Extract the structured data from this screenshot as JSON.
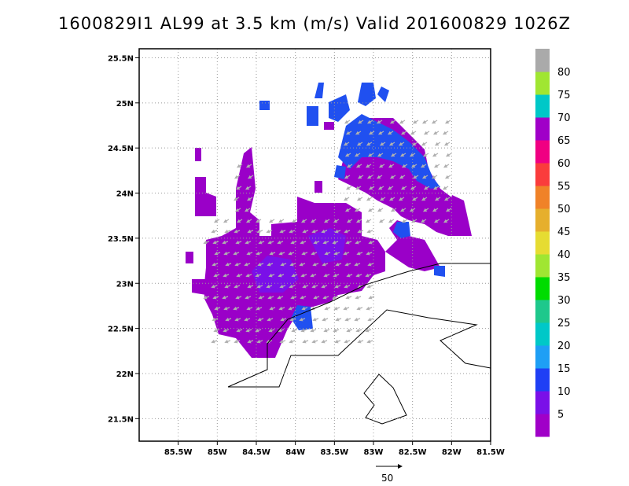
{
  "title": "1600829I1 AL99 at 3.5 km (m/s) Valid 201600829 1026Z",
  "map": {
    "lon_range": [
      -86.0,
      -81.5
    ],
    "lat_range": [
      21.25,
      25.6
    ],
    "lon_ticks": [
      {
        "value": -85.5,
        "label": "85.5W"
      },
      {
        "value": -85.0,
        "label": "85W"
      },
      {
        "value": -84.5,
        "label": "84.5W"
      },
      {
        "value": -84.0,
        "label": "84W"
      },
      {
        "value": -83.5,
        "label": "83.5W"
      },
      {
        "value": -83.0,
        "label": "83W"
      },
      {
        "value": -82.5,
        "label": "82.5W"
      },
      {
        "value": -82.0,
        "label": "82W"
      },
      {
        "value": -81.5,
        "label": "81.5W"
      }
    ],
    "lat_ticks": [
      {
        "value": 21.5,
        "label": "21.5N"
      },
      {
        "value": 22.0,
        "label": "22N"
      },
      {
        "value": 22.5,
        "label": "22.5N"
      },
      {
        "value": 23.0,
        "label": "23N"
      },
      {
        "value": 23.5,
        "label": "23.5N"
      },
      {
        "value": 24.0,
        "label": "24N"
      },
      {
        "value": 24.5,
        "label": "24.5N"
      },
      {
        "value": 25.0,
        "label": "25N"
      },
      {
        "value": 25.5,
        "label": "25.5N"
      }
    ],
    "grid": "dotted",
    "field_colors": {
      "purple": "#9a00c8",
      "violet": "#7a10e8",
      "blue": "#2050f0",
      "arrow": "#b0b0b0",
      "coast": "#000000"
    }
  },
  "colorbar": {
    "levels": [
      "5",
      "10",
      "15",
      "20",
      "25",
      "30",
      "35",
      "40",
      "45",
      "50",
      "55",
      "60",
      "65",
      "70",
      "75",
      "80"
    ],
    "colors": [
      "#a000c8",
      "#7a10e8",
      "#1f3ff5",
      "#1e9ff5",
      "#00c8c8",
      "#1ec88c",
      "#00dc00",
      "#a0e632",
      "#e6dc32",
      "#e6af2d",
      "#f08228",
      "#fa3c3c",
      "#f00082",
      "#a000c8",
      "#00c8c8",
      "#a0e632",
      "#aaaaaa"
    ]
  },
  "reference_vector": {
    "label": "50"
  }
}
